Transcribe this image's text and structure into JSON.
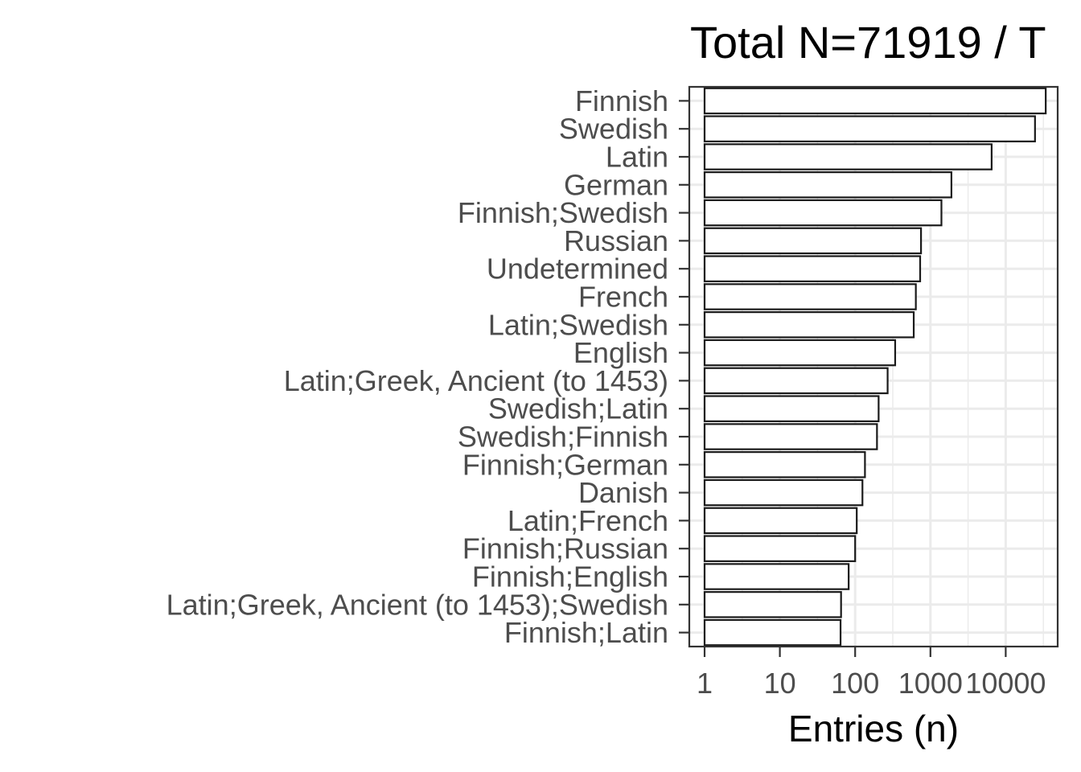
{
  "chart_data": {
    "type": "bar",
    "orientation": "horizontal",
    "title": "Total N=71919 / T",
    "xlabel": "Entries (n)",
    "ylabel": "",
    "x_scale": "log10",
    "xlim": [
      1,
      40000
    ],
    "x_ticks": [
      1,
      10,
      100,
      1000,
      10000
    ],
    "x_tick_labels": [
      "1",
      "10",
      "100",
      "1000",
      "10000"
    ],
    "grid": true,
    "legend": "none",
    "categories": [
      "Finnish",
      "Swedish",
      "Latin",
      "German",
      "Finnish;Swedish",
      "Russian",
      "Undetermined",
      "French",
      "Latin;Swedish",
      "English",
      "Latin;Greek, Ancient (to 1453)",
      "Swedish;Latin",
      "Swedish;Finnish",
      "Finnish;German",
      "Danish",
      "Latin;French",
      "Finnish;Russian",
      "Finnish;English",
      "Latin;Greek, Ancient (to 1453);Swedish",
      "Finnish;Latin"
    ],
    "values": [
      34000,
      24500,
      6500,
      1900,
      1400,
      750,
      730,
      640,
      600,
      340,
      270,
      205,
      195,
      135,
      125,
      105,
      100,
      82,
      65,
      64
    ],
    "colors": {
      "bar_fill": "#ffffff",
      "bar_stroke": "#1a1a1a",
      "grid": "#ebebeb",
      "panel_border": "#333333"
    }
  }
}
